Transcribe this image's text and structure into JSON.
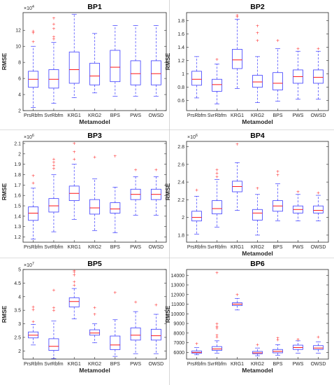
{
  "colors": {
    "box": "#3b3bff",
    "median": "#ff0000",
    "outlier": "#ff3030",
    "axis": "#262626",
    "divider": "#bdbdbd"
  },
  "chart_data": [
    {
      "type": "boxplot",
      "title": "BP1",
      "ylabel": "RMSE",
      "xlabel": "Metamodel",
      "exponent_label": "×10",
      "exponent": "4",
      "ylim": [
        2,
        14.2
      ],
      "yticks": [
        2,
        4,
        6,
        8,
        10,
        12
      ],
      "categories": [
        "PrsRbfm",
        "SvrRbfm",
        "KRG1",
        "KRG2",
        "BPS",
        "PWS",
        "OWSD"
      ],
      "boxes": [
        {
          "whisker_low": 2.4,
          "q1": 4.9,
          "median": 5.9,
          "q3": 6.9,
          "whisker_high": 10.0,
          "outliers": [
            10.6,
            11.7,
            11.9
          ]
        },
        {
          "whisker_low": 2.9,
          "q1": 4.8,
          "median": 5.9,
          "q3": 7.1,
          "whisker_high": 10.5,
          "outliers": [
            10.9,
            11.2,
            12.2,
            12.8,
            13.5
          ]
        },
        {
          "whisker_low": 3.6,
          "q1": 5.4,
          "median": 7.1,
          "q3": 9.3,
          "whisker_high": 14.0,
          "outliers": []
        },
        {
          "whisker_low": 4.2,
          "q1": 5.2,
          "median": 6.3,
          "q3": 7.9,
          "whisker_high": 11.6,
          "outliers": []
        },
        {
          "whisker_low": 3.8,
          "q1": 5.6,
          "median": 7.4,
          "q3": 9.5,
          "whisker_high": 12.6,
          "outliers": []
        },
        {
          "whisker_low": 3.8,
          "q1": 5.2,
          "median": 6.6,
          "q3": 8.2,
          "whisker_high": 12.6,
          "outliers": []
        },
        {
          "whisker_low": 3.8,
          "q1": 5.2,
          "median": 6.6,
          "q3": 8.2,
          "whisker_high": 12.6,
          "outliers": []
        }
      ]
    },
    {
      "type": "boxplot",
      "title": "BP2",
      "ylabel": "RMSE",
      "xlabel": "Metamodel",
      "exponent_label": "",
      "exponent": "",
      "ylim": [
        0.45,
        1.92
      ],
      "yticks": [
        0.6,
        0.8,
        1.0,
        1.2,
        1.4,
        1.6,
        1.8
      ],
      "ytick_labels": [
        "0.6",
        "0.8",
        "1",
        "1.2",
        "1.4",
        "1.6",
        "1.8"
      ],
      "categories": [
        "PrsRbfm",
        "SvrRbfm",
        "KRG1",
        "KRG2",
        "BPS",
        "PWS",
        "OWSD"
      ],
      "boxes": [
        {
          "whisker_low": 0.64,
          "q1": 0.83,
          "median": 0.92,
          "q3": 1.04,
          "whisker_high": 1.26,
          "outliers": []
        },
        {
          "whisker_low": 0.55,
          "q1": 0.74,
          "median": 0.84,
          "q3": 0.92,
          "whisker_high": 1.15,
          "outliers": [
            1.22
          ]
        },
        {
          "whisker_low": 0.78,
          "q1": 1.08,
          "median": 1.21,
          "q3": 1.37,
          "whisker_high": 1.82,
          "outliers": [
            1.86,
            1.88
          ]
        },
        {
          "whisker_low": 0.57,
          "q1": 0.8,
          "median": 0.88,
          "q3": 0.98,
          "whisker_high": 1.26,
          "outliers": [
            1.5,
            1.62,
            1.72
          ]
        },
        {
          "whisker_low": 0.59,
          "q1": 0.76,
          "median": 0.86,
          "q3": 1.02,
          "whisker_high": 1.38,
          "outliers": [
            1.5
          ]
        },
        {
          "whisker_low": 0.62,
          "q1": 0.86,
          "median": 0.96,
          "q3": 1.06,
          "whisker_high": 1.34,
          "outliers": [
            1.38
          ]
        },
        {
          "whisker_low": 0.62,
          "q1": 0.86,
          "median": 0.95,
          "q3": 1.06,
          "whisker_high": 1.34,
          "outliers": [
            1.38
          ]
        }
      ]
    },
    {
      "type": "boxplot",
      "title": "BP3",
      "ylabel": "RMSE",
      "xlabel": "",
      "exponent_label": "×10",
      "exponent": "6",
      "ylim": [
        1.15,
        2.12
      ],
      "yticks": [
        1.2,
        1.3,
        1.4,
        1.5,
        1.6,
        1.7,
        1.8,
        1.9,
        2.0,
        2.1
      ],
      "ytick_labels": [
        "1.2",
        "1.3",
        "1.4",
        "1.5",
        "1.6",
        "1.7",
        "1.8",
        "1.9",
        "2",
        "2.1"
      ],
      "categories": [
        "PrsRbfm",
        "SvrRbfm",
        "KRG1",
        "KRG2",
        "BPS",
        "PWS",
        "OWSD"
      ],
      "boxes": [
        {
          "whisker_low": 1.18,
          "q1": 1.36,
          "median": 1.43,
          "q3": 1.49,
          "whisker_high": 1.67,
          "outliers": [
            1.72,
            1.79
          ]
        },
        {
          "whisker_low": 1.25,
          "q1": 1.44,
          "median": 1.5,
          "q3": 1.57,
          "whisker_high": 1.8,
          "outliers": [
            1.86,
            1.89,
            1.92,
            1.95
          ]
        },
        {
          "whisker_low": 1.37,
          "q1": 1.55,
          "median": 1.62,
          "q3": 1.69,
          "whisker_high": 1.9,
          "outliers": [
            1.95,
            2.02,
            2.1
          ]
        },
        {
          "whisker_low": 1.26,
          "q1": 1.42,
          "median": 1.48,
          "q3": 1.56,
          "whisker_high": 1.76,
          "outliers": [
            1.97
          ]
        },
        {
          "whisker_low": 1.24,
          "q1": 1.43,
          "median": 1.47,
          "q3": 1.53,
          "whisker_high": 1.68,
          "outliers": [
            1.98
          ]
        },
        {
          "whisker_low": 1.41,
          "q1": 1.56,
          "median": 1.61,
          "q3": 1.66,
          "whisker_high": 1.78,
          "outliers": [
            1.85
          ]
        },
        {
          "whisker_low": 1.41,
          "q1": 1.56,
          "median": 1.61,
          "q3": 1.66,
          "whisker_high": 1.78,
          "outliers": [
            1.85
          ]
        }
      ]
    },
    {
      "type": "boxplot",
      "title": "BP4",
      "ylabel": "RMSE",
      "xlabel": "Metamodel",
      "exponent_label": "×10",
      "exponent": "6",
      "ylim": [
        1.72,
        2.86
      ],
      "yticks": [
        1.8,
        2.0,
        2.2,
        2.4,
        2.6,
        2.8
      ],
      "ytick_labels": [
        "1.8",
        "2",
        "2.2",
        "2.4",
        "2.6",
        "2.8"
      ],
      "categories": [
        "PrsRbfm",
        "SvrRbfm",
        "KRG1",
        "KRG2",
        "BPS",
        "PWS",
        "OWSD"
      ],
      "boxes": [
        {
          "whisker_low": 1.81,
          "q1": 1.96,
          "median": 2.0,
          "q3": 2.07,
          "whisker_high": 2.24,
          "outliers": [
            2.31
          ]
        },
        {
          "whisker_low": 1.89,
          "q1": 2.04,
          "median": 2.1,
          "q3": 2.19,
          "whisker_high": 2.43,
          "outliers": [
            2.46,
            2.5,
            2.54
          ]
        },
        {
          "whisker_low": 2.08,
          "q1": 2.29,
          "median": 2.35,
          "q3": 2.41,
          "whisker_high": 2.62,
          "outliers": [
            2.83
          ]
        },
        {
          "whisker_low": 1.8,
          "q1": 1.97,
          "median": 2.05,
          "q3": 2.09,
          "whisker_high": 2.26,
          "outliers": [
            2.33
          ]
        },
        {
          "whisker_low": 1.96,
          "q1": 2.07,
          "median": 2.13,
          "q3": 2.19,
          "whisker_high": 2.38,
          "outliers": [
            2.48,
            2.52
          ]
        },
        {
          "whisker_low": 1.96,
          "q1": 2.05,
          "median": 2.09,
          "q3": 2.13,
          "whisker_high": 2.26,
          "outliers": [
            2.29
          ]
        },
        {
          "whisker_low": 1.96,
          "q1": 2.05,
          "median": 2.08,
          "q3": 2.13,
          "whisker_high": 2.25,
          "outliers": [
            2.28
          ]
        }
      ]
    },
    {
      "type": "boxplot",
      "title": "BP5",
      "ylabel": "RMSE",
      "xlabel": "Metamodel",
      "exponent_label": "×10",
      "exponent": "7",
      "ylim": [
        1.7,
        5.0
      ],
      "yticks": [
        2,
        2.5,
        3,
        3.5,
        4,
        4.5,
        5
      ],
      "ytick_labels": [
        "2",
        "2.5",
        "3",
        "3.5",
        "4",
        "4.5",
        "5"
      ],
      "categories": [
        "PrsRbfm",
        "SvrRbfm",
        "KRG1",
        "KRG2",
        "BPS",
        "PWS",
        "OWSD"
      ],
      "boxes": [
        {
          "whisker_low": 2.22,
          "q1": 2.48,
          "median": 2.58,
          "q3": 2.7,
          "whisker_high": 2.98,
          "outliers": [
            3.08,
            3.52,
            3.62
          ]
        },
        {
          "whisker_low": 1.72,
          "q1": 2.02,
          "median": 2.17,
          "q3": 2.45,
          "whisker_high": 3.1,
          "outliers": [
            3.5,
            3.6,
            4.25
          ]
        },
        {
          "whisker_low": 3.18,
          "q1": 3.62,
          "median": 3.82,
          "q3": 3.96,
          "whisker_high": 4.3,
          "outliers": [
            4.42,
            4.55,
            4.8,
            4.9,
            4.96
          ]
        },
        {
          "whisker_low": 2.3,
          "q1": 2.58,
          "median": 2.66,
          "q3": 2.78,
          "whisker_high": 3.0,
          "outliers": [
            3.35,
            3.6
          ]
        },
        {
          "whisker_low": 1.8,
          "q1": 2.05,
          "median": 2.22,
          "q3": 2.55,
          "whisker_high": 3.15,
          "outliers": [
            4.15
          ]
        },
        {
          "whisker_low": 1.9,
          "q1": 2.4,
          "median": 2.58,
          "q3": 2.85,
          "whisker_high": 3.45,
          "outliers": [
            3.8
          ]
        },
        {
          "whisker_low": 1.9,
          "q1": 2.4,
          "median": 2.56,
          "q3": 2.8,
          "whisker_high": 3.35,
          "outliers": [
            3.7
          ]
        }
      ]
    },
    {
      "type": "boxplot",
      "title": "BP6",
      "ylabel": "RMSE",
      "xlabel": "Metamodel",
      "exponent_label": "",
      "exponent": "",
      "ylim": [
        5300,
        14600
      ],
      "yticks": [
        6000,
        7000,
        8000,
        9000,
        10000,
        11000,
        12000,
        13000,
        14000
      ],
      "ytick_labels": [
        "6000",
        "7000",
        "8000",
        "9000",
        "10000",
        "11000",
        "12000",
        "13000",
        "14000"
      ],
      "categories": [
        "PrsRbfm",
        "SvrRbfm",
        "KRG1",
        "KRG2",
        "BPS",
        "PWS",
        "OWSD"
      ],
      "boxes": [
        {
          "whisker_low": 5750,
          "q1": 5900,
          "median": 6000,
          "q3": 6150,
          "whisker_high": 6500,
          "outliers": [
            6900
          ]
        },
        {
          "whisker_low": 5900,
          "q1": 6200,
          "median": 6350,
          "q3": 6600,
          "whisker_high": 7200,
          "outliers": [
            7600,
            7800,
            8500,
            8700,
            9000,
            14300
          ]
        },
        {
          "whisker_low": 10400,
          "q1": 10850,
          "median": 11000,
          "q3": 11150,
          "whisker_high": 11600,
          "outliers": [
            12000
          ]
        },
        {
          "whisker_low": 5650,
          "q1": 5850,
          "median": 5950,
          "q3": 6100,
          "whisker_high": 6450,
          "outliers": [
            6800
          ]
        },
        {
          "whisker_low": 5700,
          "q1": 5950,
          "median": 6100,
          "q3": 6300,
          "whisker_high": 6800,
          "outliers": [
            7300,
            7500
          ]
        },
        {
          "whisker_low": 5900,
          "q1": 6300,
          "median": 6500,
          "q3": 6750,
          "whisker_high": 7200,
          "outliers": [
            7350
          ]
        },
        {
          "whisker_low": 5900,
          "q1": 6300,
          "median": 6450,
          "q3": 6700,
          "whisker_high": 7100,
          "outliers": [
            7600
          ]
        }
      ]
    }
  ]
}
